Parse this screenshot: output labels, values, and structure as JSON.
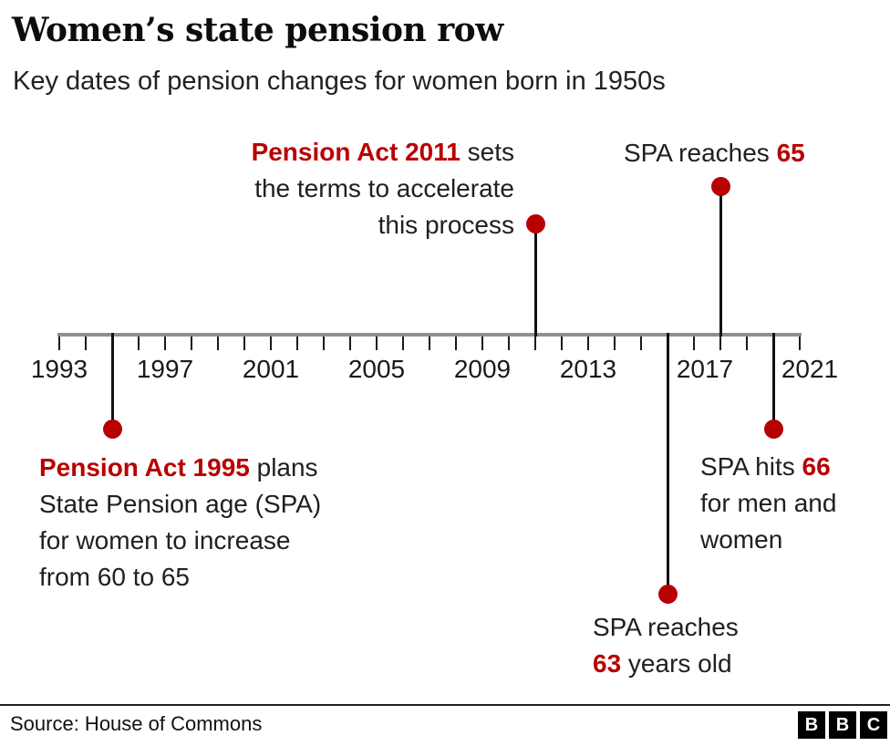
{
  "header": {
    "title": "Women’s state pension row",
    "subtitle": "Key dates of pension changes for women born in 1950s"
  },
  "chart_data": {
    "type": "timeline",
    "title": "Women’s state pension row",
    "subtitle": "Key dates of pension changes for women born in 1950s",
    "x_axis": {
      "min": 1993,
      "max": 2021,
      "tick_interval_years": 1,
      "labeled_years": [
        1993,
        1997,
        2001,
        2005,
        2009,
        2013,
        2017,
        2021
      ]
    },
    "events": [
      {
        "id": "pension-act-1995",
        "year": 1995,
        "side": "below",
        "lines": [
          [
            {
              "text": "Pension Act 1995",
              "emphasis": true
            },
            {
              "text": " plans"
            }
          ],
          [
            {
              "text": "State Pension age (SPA)"
            }
          ],
          [
            {
              "text": "for women to increase"
            }
          ],
          [
            {
              "text": "from 60 to 65"
            }
          ]
        ]
      },
      {
        "id": "pension-act-2011",
        "year": 2011,
        "side": "above",
        "lines": [
          [
            {
              "text": "Pension Act 2011",
              "emphasis": true
            },
            {
              "text": " sets"
            }
          ],
          [
            {
              "text": "the terms to accelerate"
            }
          ],
          [
            {
              "text": "this process"
            }
          ]
        ]
      },
      {
        "id": "spa-63",
        "year": 2016,
        "side": "below",
        "lines": [
          [
            {
              "text": "SPA reaches"
            }
          ],
          [
            {
              "text": "63",
              "emphasis": true
            },
            {
              "text": " years old"
            }
          ]
        ]
      },
      {
        "id": "spa-65",
        "year": 2018,
        "side": "above",
        "lines": [
          [
            {
              "text": "SPA reaches "
            },
            {
              "text": "65",
              "emphasis": true
            }
          ]
        ]
      },
      {
        "id": "spa-66",
        "year": 2020,
        "side": "below",
        "lines": [
          [
            {
              "text": "SPA hits "
            },
            {
              "text": "66",
              "emphasis": true
            }
          ],
          [
            {
              "text": "for men and"
            }
          ],
          [
            {
              "text": "women"
            }
          ]
        ]
      }
    ],
    "colors": {
      "accent_red": "#b80000",
      "text_dark": "#202020",
      "axis_gray": "#8f8f8f",
      "stem_black": "#111111"
    },
    "legend": "none",
    "grid": "off"
  },
  "footer": {
    "source": "Source: House of Commons",
    "logo_letters": [
      "B",
      "B",
      "C"
    ]
  }
}
